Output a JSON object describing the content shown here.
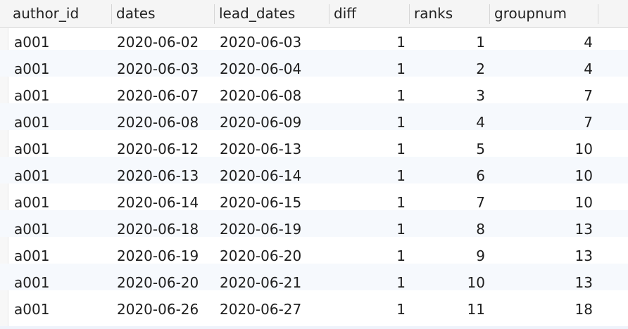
{
  "table": {
    "columns": [
      "author_id",
      "dates",
      "lead_dates",
      "diff",
      "ranks",
      "groupnum"
    ],
    "rows": [
      [
        "a001",
        "2020-06-02",
        "2020-06-03",
        "1",
        "1",
        "4"
      ],
      [
        "a001",
        "2020-06-03",
        "2020-06-04",
        "1",
        "2",
        "4"
      ],
      [
        "a001",
        "2020-06-07",
        "2020-06-08",
        "1",
        "3",
        "7"
      ],
      [
        "a001",
        "2020-06-08",
        "2020-06-09",
        "1",
        "4",
        "7"
      ],
      [
        "a001",
        "2020-06-12",
        "2020-06-13",
        "1",
        "5",
        "10"
      ],
      [
        "a001",
        "2020-06-13",
        "2020-06-14",
        "1",
        "6",
        "10"
      ],
      [
        "a001",
        "2020-06-14",
        "2020-06-15",
        "1",
        "7",
        "10"
      ],
      [
        "a001",
        "2020-06-18",
        "2020-06-19",
        "1",
        "8",
        "13"
      ],
      [
        "a001",
        "2020-06-19",
        "2020-06-20",
        "1",
        "9",
        "13"
      ],
      [
        "a001",
        "2020-06-20",
        "2020-06-21",
        "1",
        "10",
        "13"
      ],
      [
        "a001",
        "2020-06-26",
        "2020-06-27",
        "1",
        "11",
        "18"
      ]
    ]
  }
}
